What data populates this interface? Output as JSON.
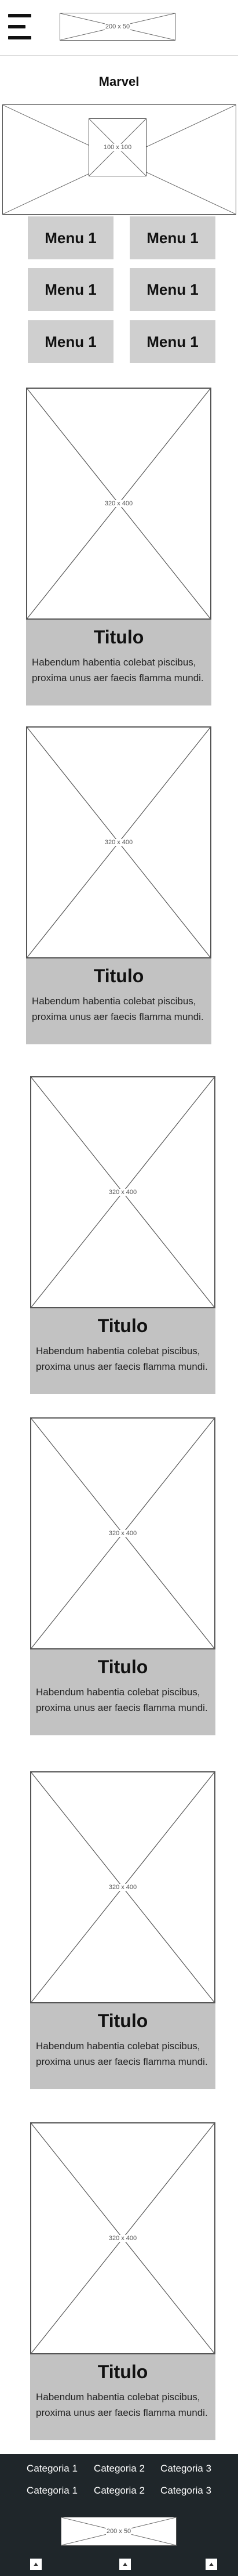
{
  "header": {
    "logo_placeholder": "200 x 50"
  },
  "page": {
    "title": "Marvel",
    "hero_placeholder": "100 x 100"
  },
  "menu": {
    "items": [
      {
        "label": "Menu 1"
      },
      {
        "label": "Menu 1"
      },
      {
        "label": "Menu 1"
      },
      {
        "label": "Menu 1"
      },
      {
        "label": "Menu 1"
      },
      {
        "label": "Menu 1"
      }
    ]
  },
  "cards": [
    {
      "image_placeholder": "320 x 400",
      "title": "Titulo",
      "text": "Habendum habentia colebat piscibus, proxima unus aer faecis flamma mundi."
    },
    {
      "image_placeholder": "320 x 400",
      "title": "Titulo",
      "text": "Habendum habentia colebat piscibus, proxima unus aer faecis flamma mundi."
    },
    {
      "image_placeholder": "320 x 400",
      "title": "Titulo",
      "text": "Habendum habentia colebat piscibus, proxima unus aer faecis flamma mundi."
    },
    {
      "image_placeholder": "320 x 400",
      "title": "Titulo",
      "text": "Habendum habentia colebat piscibus, proxima unus aer faecis flamma mundi."
    },
    {
      "image_placeholder": "320 x 400",
      "title": "Titulo",
      "text": "Habendum habentia colebat piscibus, proxima unus aer faecis flamma mundi."
    },
    {
      "image_placeholder": "320 x 400",
      "title": "Titulo",
      "text": "Habendum habentia colebat piscibus, proxima unus aer faecis flamma mundi."
    }
  ],
  "footer": {
    "categories_row1": [
      "Categoria 1",
      "Categoria 2",
      "Categoria 3"
    ],
    "categories_row2": [
      "Categoria 1",
      "Categoria 2",
      "Categoria 3"
    ],
    "logo_placeholder": "200 x 50",
    "icons": [
      "social-icon",
      "social-icon",
      "social-icon"
    ]
  },
  "colors": {
    "footer_bg": "#1f262a",
    "menu_button_bg": "#cfcfcf",
    "card_body_bg": "#c2c2c2"
  }
}
